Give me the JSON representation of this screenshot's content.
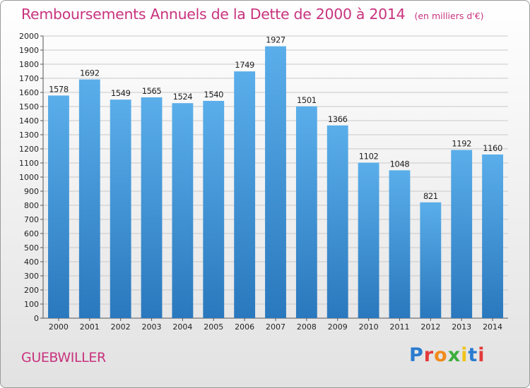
{
  "header": {
    "title": "Remboursements Annuels de la Dette de 2000 à 2014",
    "unit": "(en milliers d'€)"
  },
  "footer": {
    "city": "GUEBWILLER",
    "brand": "Proxiti"
  },
  "colors": {
    "title": "#c8337e",
    "bar_light": "#5aaeea",
    "bar_dark": "#2a78bd",
    "grid": "#c9c9c9"
  },
  "chart_data": {
    "type": "bar",
    "categories": [
      "2000",
      "2001",
      "2002",
      "2003",
      "2004",
      "2005",
      "2006",
      "2007",
      "2008",
      "2009",
      "2010",
      "2011",
      "2012",
      "2013",
      "2014"
    ],
    "values": [
      1578,
      1692,
      1549,
      1565,
      1524,
      1540,
      1749,
      1927,
      1501,
      1366,
      1102,
      1048,
      821,
      1192,
      1160
    ],
    "ylim": [
      0,
      2000
    ],
    "ytick_step": 100,
    "grid": true,
    "value_labels": true
  }
}
